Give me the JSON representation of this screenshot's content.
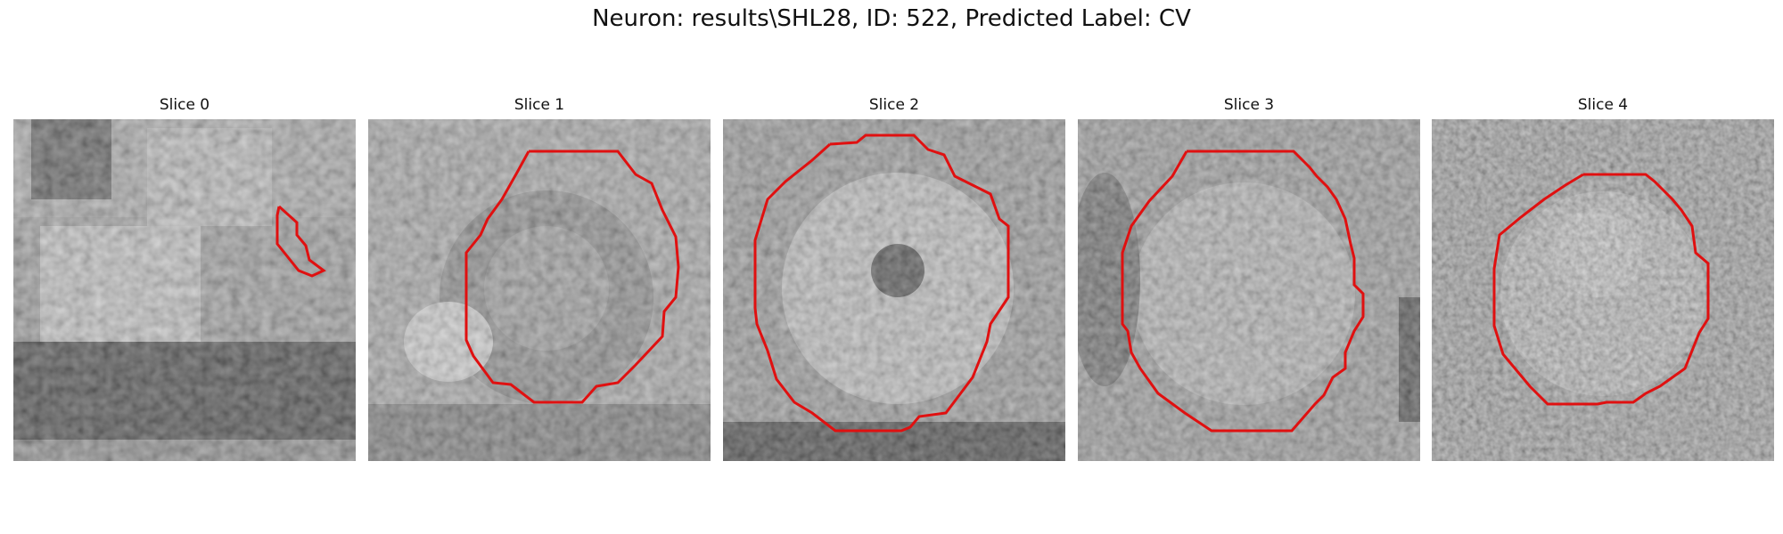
{
  "figure": {
    "title": "Neuron: results\\SHL28, ID: 522, Predicted Label: CV"
  },
  "colors": {
    "contour": "#e01010",
    "background": "#ffffff"
  },
  "panels": [
    {
      "title": "Slice 0"
    },
    {
      "title": "Slice 1"
    },
    {
      "title": "Slice 2"
    },
    {
      "title": "Slice 3"
    },
    {
      "title": "Slice 4"
    }
  ]
}
